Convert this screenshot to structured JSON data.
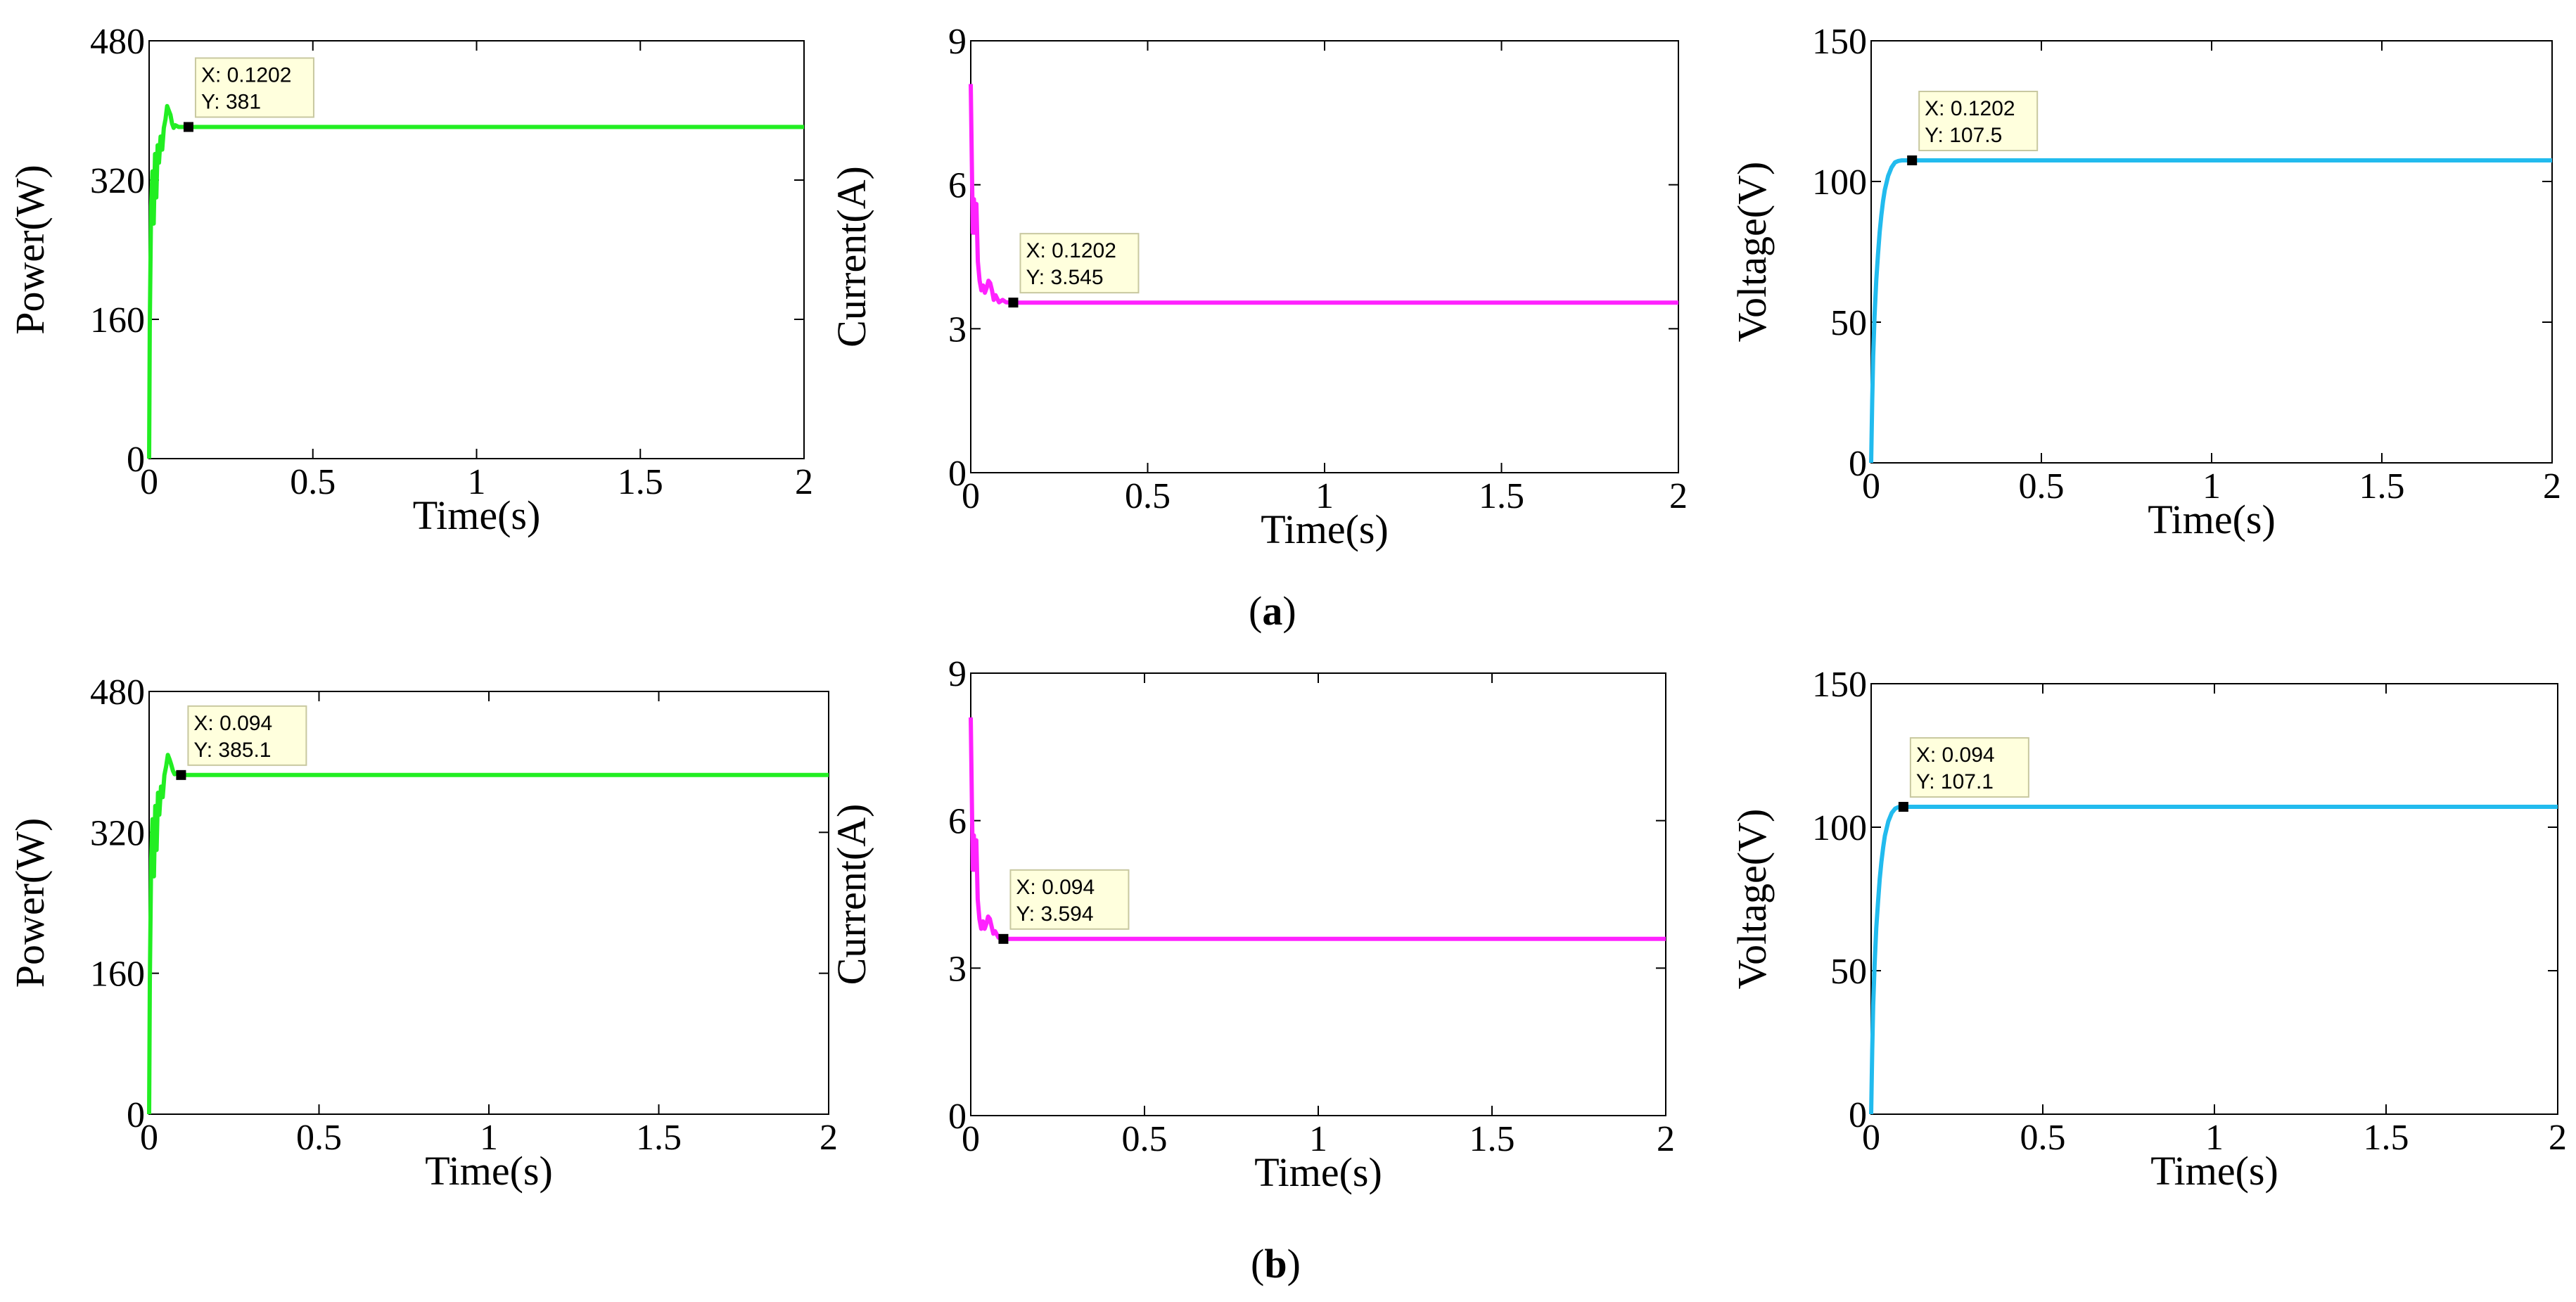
{
  "panel_labels": {
    "a": {
      "open": "(",
      "letter": "a",
      "close": ")"
    },
    "b": {
      "open": "(",
      "letter": "b",
      "close": ")"
    }
  },
  "chart_data": [
    {
      "id": "a-power",
      "type": "line",
      "row": "a",
      "color": "#22ee22",
      "xlabel": "Time(s)",
      "ylabel": "Power(W)",
      "xlim": [
        0,
        2
      ],
      "ylim": [
        0,
        480
      ],
      "xticks": [
        0,
        0.5,
        1,
        1.5,
        2
      ],
      "xtick_labels": [
        "0",
        "0.5",
        "1",
        "1.5",
        "2"
      ],
      "yticks": [
        0,
        160,
        320,
        480
      ],
      "ytick_labels": [
        "0",
        "160",
        "320",
        "480"
      ],
      "series": [
        {
          "name": "Power",
          "x": [
            0,
            0.002,
            0.006,
            0.01,
            0.014,
            0.018,
            0.022,
            0.026,
            0.03,
            0.035,
            0.04,
            0.045,
            0.05,
            0.055,
            0.06,
            0.065,
            0.07,
            0.075,
            0.08,
            0.09,
            0.1,
            0.11,
            0.1202,
            2
          ],
          "y": [
            0,
            150,
            290,
            330,
            270,
            350,
            300,
            360,
            340,
            370,
            355,
            380,
            390,
            405,
            400,
            395,
            385,
            380,
            383,
            381,
            381,
            381,
            381,
            381
          ]
        }
      ],
      "datatip": {
        "x": 0.1202,
        "y": 381,
        "x_label": "X: 0.1202",
        "y_label": "Y: 381"
      }
    },
    {
      "id": "a-current",
      "type": "line",
      "row": "a",
      "color": "#ff22ff",
      "xlabel": "Time(s)",
      "ylabel": "Current(A)",
      "xlim": [
        0,
        2
      ],
      "ylim": [
        0,
        9
      ],
      "xticks": [
        0,
        0.5,
        1,
        1.5,
        2
      ],
      "xtick_labels": [
        "0",
        "0.5",
        "1",
        "1.5",
        "2"
      ],
      "yticks": [
        0,
        3,
        6,
        9
      ],
      "ytick_labels": [
        "0",
        "3",
        "6",
        "9"
      ],
      "series": [
        {
          "name": "Current",
          "x": [
            0,
            0.003,
            0.006,
            0.009,
            0.012,
            0.016,
            0.02,
            0.025,
            0.03,
            0.035,
            0.04,
            0.045,
            0.05,
            0.055,
            0.06,
            0.065,
            0.07,
            0.08,
            0.09,
            0.1,
            0.1202,
            2
          ],
          "y": [
            8.1,
            6.5,
            5.0,
            5.7,
            5.0,
            5.6,
            4.4,
            4.0,
            3.8,
            3.9,
            3.75,
            3.85,
            4.0,
            3.95,
            3.8,
            3.6,
            3.7,
            3.55,
            3.6,
            3.55,
            3.545,
            3.545
          ]
        }
      ],
      "datatip": {
        "x": 0.1202,
        "y": 3.545,
        "x_label": "X: 0.1202",
        "y_label": "Y: 3.545"
      }
    },
    {
      "id": "a-voltage",
      "type": "line",
      "row": "a",
      "color": "#22bbee",
      "xlabel": "Time(s)",
      "ylabel": "Voltage(V)",
      "xlim": [
        0,
        2
      ],
      "ylim": [
        0,
        150
      ],
      "xticks": [
        0,
        0.5,
        1,
        1.5,
        2
      ],
      "xtick_labels": [
        "0",
        "0.5",
        "1",
        "1.5",
        "2"
      ],
      "yticks": [
        0,
        50,
        100,
        150
      ],
      "ytick_labels": [
        "0",
        "50",
        "100",
        "150"
      ],
      "series": [
        {
          "name": "Voltage",
          "x": [
            0,
            0.003,
            0.006,
            0.01,
            0.015,
            0.02,
            0.025,
            0.03,
            0.035,
            0.04,
            0.05,
            0.06,
            0.07,
            0.08,
            0.09,
            0.1,
            0.1202,
            2
          ],
          "y": [
            0,
            22,
            38,
            52,
            65,
            74,
            82,
            88,
            93,
            97,
            102,
            105,
            106.8,
            107.3,
            107.5,
            107.5,
            107.5,
            107.5
          ]
        }
      ],
      "datatip": {
        "x": 0.1202,
        "y": 107.5,
        "x_label": "X: 0.1202",
        "y_label": "Y: 107.5"
      }
    },
    {
      "id": "b-power",
      "type": "line",
      "row": "b",
      "color": "#22ee22",
      "xlabel": "Time(s)",
      "ylabel": "Power(W)",
      "xlim": [
        0,
        2
      ],
      "ylim": [
        0,
        480
      ],
      "xticks": [
        0,
        0.5,
        1,
        1.5,
        2
      ],
      "xtick_labels": [
        "0",
        "0.5",
        "1",
        "1.5",
        "2"
      ],
      "yticks": [
        0,
        160,
        320,
        480
      ],
      "ytick_labels": [
        "0",
        "160",
        "320",
        "480"
      ],
      "series": [
        {
          "name": "Power",
          "x": [
            0,
            0.002,
            0.006,
            0.01,
            0.014,
            0.018,
            0.022,
            0.026,
            0.03,
            0.035,
            0.04,
            0.045,
            0.05,
            0.055,
            0.06,
            0.065,
            0.07,
            0.075,
            0.08,
            0.087,
            0.094,
            2
          ],
          "y": [
            0,
            150,
            290,
            335,
            270,
            350,
            300,
            365,
            340,
            372,
            360,
            385,
            395,
            408,
            403,
            397,
            390,
            386,
            387,
            385.5,
            385.1,
            385.1
          ]
        }
      ],
      "datatip": {
        "x": 0.094,
        "y": 385.1,
        "x_label": "X: 0.094",
        "y_label": "Y: 385.1"
      }
    },
    {
      "id": "b-current",
      "type": "line",
      "row": "b",
      "color": "#ff22ff",
      "xlabel": "Time(s)",
      "ylabel": "Current(A)",
      "xlim": [
        0,
        2
      ],
      "ylim": [
        0,
        9
      ],
      "xticks": [
        0,
        0.5,
        1,
        1.5,
        2
      ],
      "xtick_labels": [
        "0",
        "0.5",
        "1",
        "1.5",
        "2"
      ],
      "yticks": [
        0,
        3,
        6,
        9
      ],
      "ytick_labels": [
        "0",
        "3",
        "6",
        "9"
      ],
      "series": [
        {
          "name": "Current",
          "x": [
            0,
            0.003,
            0.006,
            0.009,
            0.012,
            0.016,
            0.02,
            0.025,
            0.03,
            0.035,
            0.04,
            0.045,
            0.05,
            0.055,
            0.06,
            0.065,
            0.07,
            0.08,
            0.094,
            2
          ],
          "y": [
            8.1,
            6.5,
            5.0,
            5.7,
            5.0,
            5.6,
            4.4,
            4.0,
            3.8,
            3.95,
            3.8,
            3.9,
            4.05,
            4.0,
            3.85,
            3.7,
            3.75,
            3.62,
            3.594,
            3.594
          ]
        }
      ],
      "datatip": {
        "x": 0.094,
        "y": 3.594,
        "x_label": "X: 0.094",
        "y_label": "Y: 3.594"
      }
    },
    {
      "id": "b-voltage",
      "type": "line",
      "row": "b",
      "color": "#22bbee",
      "xlabel": "Time(s)",
      "ylabel": "Voltage(V)",
      "xlim": [
        0,
        2
      ],
      "ylim": [
        0,
        150
      ],
      "xticks": [
        0,
        0.5,
        1,
        1.5,
        2
      ],
      "xtick_labels": [
        "0",
        "0.5",
        "1",
        "1.5",
        "2"
      ],
      "yticks": [
        0,
        50,
        100,
        150
      ],
      "ytick_labels": [
        "0",
        "50",
        "100",
        "150"
      ],
      "series": [
        {
          "name": "Voltage",
          "x": [
            0,
            0.003,
            0.006,
            0.01,
            0.015,
            0.02,
            0.025,
            0.03,
            0.035,
            0.04,
            0.05,
            0.06,
            0.07,
            0.08,
            0.094,
            2
          ],
          "y": [
            0,
            22,
            38,
            52,
            65,
            74,
            82,
            88,
            93,
            97,
            102,
            105,
            106.5,
            107.0,
            107.1,
            107.1
          ]
        }
      ],
      "datatip": {
        "x": 0.094,
        "y": 107.1,
        "x_label": "X: 0.094",
        "y_label": "Y: 107.1"
      }
    }
  ]
}
